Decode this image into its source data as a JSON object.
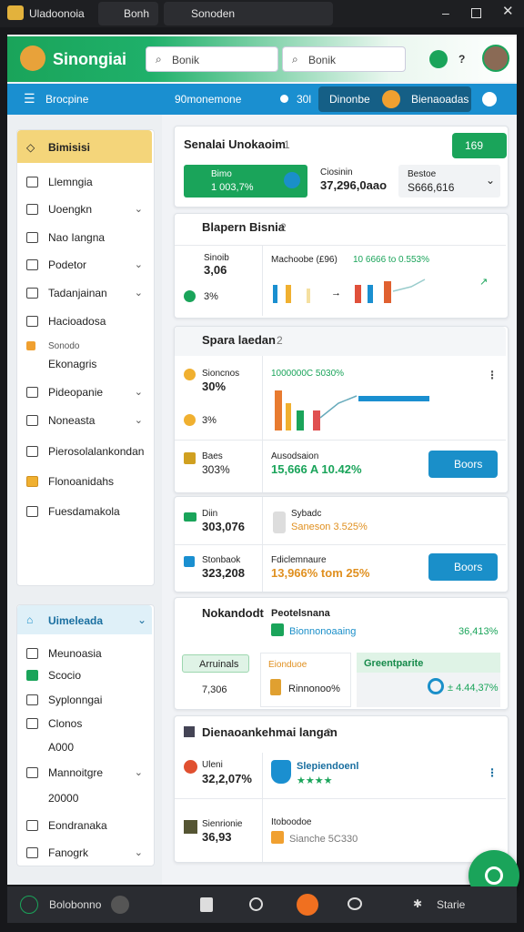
{
  "window": {
    "tabs": [
      "Uladoonoia",
      "Bonh",
      "Sonoden"
    ]
  },
  "header": {
    "logo": "Sinongiai",
    "search": [
      "Bonik",
      "Bonik"
    ],
    "help": "?"
  },
  "nav": {
    "menu": "Brocpine",
    "center": "90monemone",
    "count": "30l",
    "tab": "Dinonbe",
    "active": "Bienaoadas"
  },
  "sidebar": {
    "title": "Bimisisi",
    "items": [
      "Llemngia",
      "Uoengkn",
      "Nao Iangna",
      "Podetor",
      "Tadanjainan",
      "Hacioadosa",
      "Ekonagris",
      "Pideopanie",
      "Noneasta",
      "Pierosolalankondan",
      "Flonoanidahs",
      "Fuesdamakola"
    ],
    "badge": "Sonodo",
    "section": "Uimeleada",
    "section_items": [
      "Meunoasia",
      "Scocio",
      "Syplonngai",
      "Clonos",
      "A000",
      "Mannoitgre",
      "20000",
      "Eondranaka",
      "Fanogrk"
    ]
  },
  "cards": [
    {
      "title": "Senalai Unokaoim",
      "badge": "1",
      "button": "169",
      "stats": [
        {
          "label": "Bimo",
          "value": "1 003,7%"
        },
        {
          "label": "Ciosinin",
          "value": "37,296,0aao"
        },
        {
          "label": "Bestoe",
          "value": "S666,616"
        }
      ]
    },
    {
      "title": "Blapern Bisnia",
      "badge": "2",
      "metric": {
        "label": "Sinoib",
        "value": "3,06",
        "note": "3%"
      },
      "chart_label": "Machoobe (£96)",
      "chart_value": "10 6666 to 0.553%"
    },
    {
      "title": "Spara laedan",
      "badge": "2",
      "rows": [
        {
          "label": "Sioncnos",
          "value": "30%"
        },
        "3%"
      ],
      "chart_value": "1000000C 5030%",
      "footer": [
        {
          "label": "Baes",
          "value": "303%"
        },
        {
          "label": "Ausodsaion",
          "value": "15,666 A 10.42%"
        }
      ],
      "button": "Boors"
    },
    {
      "cells": [
        {
          "label": "Diin",
          "value": "303,076"
        },
        {
          "label": "Sybadc",
          "value": "Saneson 3.525%"
        },
        {
          "label": "Stonbaok",
          "value": "323,208"
        },
        {
          "label": "Fdiclemnaure",
          "value": "13,966% tom 25%"
        }
      ],
      "button": "Boors"
    },
    {
      "title": "Nokandodt",
      "subtitle": "Peotelsnana",
      "link": "Bionnonoaaing",
      "rate": "36,413%",
      "chips": [
        "Arruinals",
        "Eionduoe",
        "Greentparite"
      ],
      "value1": "7,306",
      "value2": "Rinnonoo%",
      "value3": "± 4.44,37%"
    },
    {
      "title": "Dienaoankehmai langan",
      "badge": "2",
      "rows": [
        {
          "label": "Uleni",
          "value": "32,2,07%",
          "name": "Slepiendoenl",
          "rating": "★★★★"
        },
        {
          "label": "Sienrionie",
          "value": "36,93",
          "name": "Itoboodoe",
          "note": "Sianche 5C330"
        }
      ]
    }
  ],
  "taskbar": {
    "left": "Bolobonno",
    "right": "Starie"
  }
}
